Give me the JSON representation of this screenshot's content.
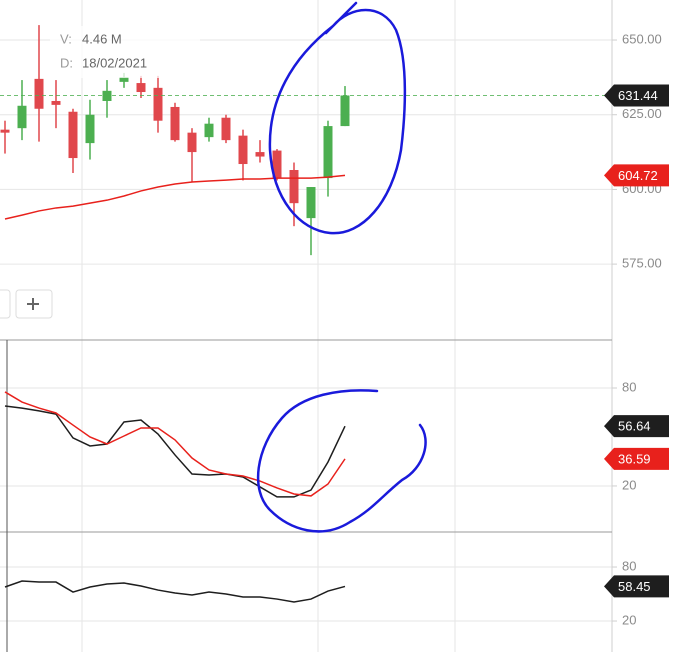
{
  "chart_data": [
    {
      "type": "candlestick",
      "info": [
        {
          "label": "V:",
          "value": "4.46 M"
        },
        {
          "label": "D:",
          "value": "18/02/2021"
        }
      ],
      "categories": [
        null,
        null,
        null,
        null,
        null,
        null,
        null,
        null,
        null,
        null,
        null,
        null,
        null,
        null,
        null,
        null,
        null,
        null,
        null,
        null,
        null
      ],
      "open": [
        620,
        620.5,
        637,
        629.6,
        626,
        615.5,
        629.6,
        636,
        635.6,
        634,
        627.6,
        619,
        617.5,
        624,
        618,
        612.5,
        613,
        606.5,
        590.4,
        603.8,
        621.2
      ],
      "high": [
        623,
        636.6,
        655,
        636.6,
        627,
        630,
        636.6,
        639,
        638,
        638,
        629,
        620.5,
        624,
        625,
        620,
        616.5,
        613.5,
        609,
        600.8,
        623,
        634.6
      ],
      "low": [
        612,
        616.5,
        616,
        620.5,
        605.5,
        610,
        624,
        634,
        630.6,
        619,
        616,
        602.5,
        616,
        615.5,
        603,
        609,
        603,
        587.7,
        578,
        597.6,
        621.2
      ],
      "close": [
        619,
        628,
        627,
        628.3,
        610.5,
        625,
        633,
        637.6,
        632.6,
        623,
        616.5,
        612.5,
        622,
        616.5,
        608.5,
        611,
        604,
        595.4,
        600.8,
        621.2,
        631.44
      ],
      "up_color": "#4caf50",
      "down_color": "#e0474c",
      "last_tag_color": "#1e1e1e",
      "series": [
        {
          "type": "line",
          "color": "#e8211c",
          "values": [
            590.1,
            591.4,
            592.8,
            593.8,
            594.4,
            595.4,
            596.4,
            597.8,
            599.5,
            600.8,
            601.8,
            602.5,
            602.8,
            603.1,
            603.5,
            603.5,
            603.8,
            603.8,
            603.8,
            604.1,
            604.72
          ]
        }
      ],
      "ylim": [
        549.6,
        663.4
      ],
      "yticks": [
        {
          "value": 575,
          "label": "575.00"
        },
        {
          "value": 600,
          "label": "600.00"
        },
        {
          "value": 625,
          "label": "625.00"
        },
        {
          "value": 650,
          "label": "650.00"
        }
      ],
      "grid": true
    },
    {
      "type": "line",
      "categories": [
        null,
        null,
        null,
        null,
        null,
        null,
        null,
        null,
        null,
        null,
        null,
        null,
        null,
        null,
        null,
        null,
        null,
        null,
        null,
        null,
        null
      ],
      "series": [
        {
          "color": "#1e1e1e",
          "values": [
            69,
            67.7,
            66,
            64,
            49.4,
            44.5,
            45.7,
            59.2,
            60.4,
            51.8,
            39,
            27.3,
            26.7,
            27.3,
            25.5,
            19.4,
            13.3,
            13.3,
            17.5,
            34.7,
            56.64
          ]
        },
        {
          "color": "#e8211c",
          "values": [
            77.6,
            71.4,
            67.7,
            64.7,
            57.3,
            50,
            45.7,
            50.6,
            55.5,
            55.5,
            48.2,
            37.1,
            29.8,
            27.3,
            26.1,
            23,
            18.8,
            15.1,
            13.9,
            21.2,
            36.59
          ]
        }
      ],
      "ylim": [
        -8.2,
        109.4
      ],
      "yticks": [
        20,
        80
      ],
      "grid": true
    },
    {
      "type": "line",
      "categories": [
        null,
        null,
        null,
        null,
        null,
        null,
        null,
        null,
        null,
        null,
        null,
        null,
        null,
        null,
        null,
        null,
        null,
        null,
        null,
        null,
        null
      ],
      "series": [
        {
          "color": "#1e1e1e",
          "values": [
            57.8,
            64.4,
            63.3,
            63.3,
            52.2,
            57.8,
            61.1,
            62.2,
            58.9,
            54.4,
            51.1,
            48.9,
            52.2,
            50,
            46.7,
            46.7,
            44.4,
            41.1,
            44.4,
            53.3,
            58.45
          ]
        }
      ],
      "ylim": [
        -14.4,
        118.9
      ],
      "yticks": [
        20,
        80
      ],
      "grid": true
    }
  ]
}
